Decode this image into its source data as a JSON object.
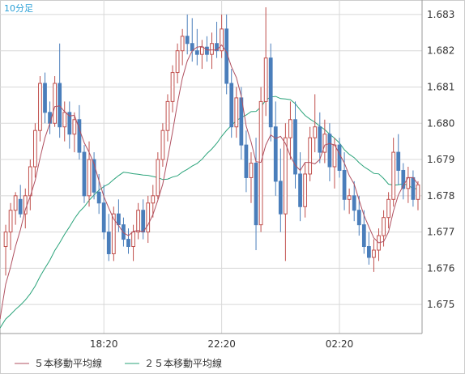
{
  "timeframe_label": "10分足",
  "colors": {
    "bull": "#c0504d",
    "bear": "#4a7ebb",
    "ma5": "#b05060",
    "ma25": "#2aa37a",
    "grid": "#d8d8d8",
    "axis": "#999999"
  },
  "chart_data": {
    "type": "candlestick",
    "title": "",
    "xlabel": "",
    "ylabel": "",
    "ylim": [
      1.6742,
      1.6834
    ],
    "y_ticks": [
      "1.675",
      "1.676",
      "1.677",
      "1.678",
      "1.679",
      "1.680",
      "1.681",
      "1.682",
      "1.683"
    ],
    "x_ticks": [
      {
        "index": 20,
        "label": "18:20"
      },
      {
        "index": 44,
        "label": "22:20"
      },
      {
        "index": 68,
        "label": "02:20"
      }
    ],
    "legend": [
      {
        "label": "５本移動平均線",
        "color": "#b05060"
      },
      {
        "label": "２５本移動平均線",
        "color": "#2aa37a"
      }
    ],
    "ohlc": [
      [
        1.6766,
        1.6772,
        1.6758,
        1.677
      ],
      [
        1.677,
        1.6778,
        1.6765,
        1.6776
      ],
      [
        1.6776,
        1.6781,
        1.6772,
        1.678
      ],
      [
        1.6779,
        1.6783,
        1.6774,
        1.6775
      ],
      [
        1.6775,
        1.6782,
        1.6771,
        1.678
      ],
      [
        1.678,
        1.679,
        1.6776,
        1.6788
      ],
      [
        1.6788,
        1.68,
        1.6785,
        1.6798
      ],
      [
        1.6798,
        1.6813,
        1.6795,
        1.6811
      ],
      [
        1.6811,
        1.6814,
        1.68,
        1.6803
      ],
      [
        1.6803,
        1.6806,
        1.6797,
        1.68
      ],
      [
        1.68,
        1.6813,
        1.6799,
        1.6811
      ],
      [
        1.6811,
        1.6822,
        1.6796,
        1.6799
      ],
      [
        1.6799,
        1.6806,
        1.6795,
        1.6803
      ],
      [
        1.6803,
        1.6806,
        1.6793,
        1.6797
      ],
      [
        1.6797,
        1.6803,
        1.6792,
        1.6801
      ],
      [
        1.6801,
        1.6805,
        1.679,
        1.6792
      ],
      [
        1.6792,
        1.6794,
        1.6778,
        1.678
      ],
      [
        1.678,
        1.6795,
        1.6777,
        1.679
      ],
      [
        1.679,
        1.6792,
        1.6779,
        1.6781
      ],
      [
        1.6781,
        1.6786,
        1.6775,
        1.6778
      ],
      [
        1.6778,
        1.6783,
        1.6768,
        1.677
      ],
      [
        1.677,
        1.6775,
        1.6762,
        1.6764
      ],
      [
        1.6764,
        1.6777,
        1.6762,
        1.6775
      ],
      [
        1.6775,
        1.6779,
        1.677,
        1.6772
      ],
      [
        1.6772,
        1.6774,
        1.6766,
        1.6768
      ],
      [
        1.6768,
        1.6771,
        1.6764,
        1.6766
      ],
      [
        1.6766,
        1.6772,
        1.6762,
        1.677
      ],
      [
        1.677,
        1.6778,
        1.6768,
        1.6776
      ],
      [
        1.6776,
        1.6779,
        1.6768,
        1.677
      ],
      [
        1.677,
        1.678,
        1.6767,
        1.6778
      ],
      [
        1.6778,
        1.6783,
        1.6774,
        1.678
      ],
      [
        1.678,
        1.6792,
        1.6779,
        1.679
      ],
      [
        1.679,
        1.68,
        1.6788,
        1.6798
      ],
      [
        1.6798,
        1.6808,
        1.6795,
        1.6806
      ],
      [
        1.6806,
        1.6816,
        1.6803,
        1.6814
      ],
      [
        1.6814,
        1.6822,
        1.6811,
        1.682
      ],
      [
        1.682,
        1.6826,
        1.6816,
        1.6824
      ],
      [
        1.6824,
        1.683,
        1.6819,
        1.6822
      ],
      [
        1.6822,
        1.6829,
        1.6817,
        1.682
      ],
      [
        1.682,
        1.6826,
        1.6816,
        1.6819
      ],
      [
        1.6819,
        1.6823,
        1.6815,
        1.6821
      ],
      [
        1.6821,
        1.6824,
        1.6817,
        1.6819
      ],
      [
        1.6819,
        1.6825,
        1.6815,
        1.6822
      ],
      [
        1.6822,
        1.6828,
        1.6818,
        1.682
      ],
      [
        1.682,
        1.683,
        1.6818,
        1.6826
      ],
      [
        1.6826,
        1.683,
        1.6808,
        1.6811
      ],
      [
        1.6811,
        1.6815,
        1.6796,
        1.6799
      ],
      [
        1.6799,
        1.681,
        1.6796,
        1.6807
      ],
      [
        1.6807,
        1.681,
        1.679,
        1.6794
      ],
      [
        1.6794,
        1.6798,
        1.6781,
        1.6785
      ],
      [
        1.6785,
        1.6792,
        1.6778,
        1.6789
      ],
      [
        1.6789,
        1.6796,
        1.6765,
        1.6772
      ],
      [
        1.6772,
        1.681,
        1.677,
        1.6806
      ],
      [
        1.6806,
        1.6832,
        1.6802,
        1.6818
      ],
      [
        1.6818,
        1.6822,
        1.6795,
        1.6799
      ],
      [
        1.6799,
        1.6806,
        1.678,
        1.6784
      ],
      [
        1.6784,
        1.6793,
        1.677,
        1.6775
      ],
      [
        1.6775,
        1.68,
        1.6762,
        1.6796
      ],
      [
        1.6796,
        1.6806,
        1.679,
        1.6801
      ],
      [
        1.6801,
        1.6806,
        1.6782,
        1.6786
      ],
      [
        1.6786,
        1.6792,
        1.6773,
        1.6777
      ],
      [
        1.6777,
        1.6789,
        1.6774,
        1.6786
      ],
      [
        1.6786,
        1.6799,
        1.6784,
        1.6796
      ],
      [
        1.6796,
        1.6808,
        1.6792,
        1.6799
      ],
      [
        1.6799,
        1.6803,
        1.6789,
        1.6792
      ],
      [
        1.6792,
        1.6801,
        1.6789,
        1.6797
      ],
      [
        1.6797,
        1.68,
        1.6784,
        1.6788
      ],
      [
        1.6788,
        1.6796,
        1.6782,
        1.6794
      ],
      [
        1.6794,
        1.6796,
        1.6785,
        1.6787
      ],
      [
        1.6787,
        1.6792,
        1.6776,
        1.6779
      ],
      [
        1.6779,
        1.6782,
        1.6775,
        1.678
      ],
      [
        1.678,
        1.6784,
        1.6773,
        1.6776
      ],
      [
        1.6776,
        1.678,
        1.6769,
        1.6772
      ],
      [
        1.6772,
        1.6776,
        1.6764,
        1.6766
      ],
      [
        1.6766,
        1.677,
        1.6761,
        1.6763
      ],
      [
        1.6763,
        1.6768,
        1.6759,
        1.6765
      ],
      [
        1.6765,
        1.6771,
        1.6762,
        1.6769
      ],
      [
        1.6769,
        1.6776,
        1.6766,
        1.6774
      ],
      [
        1.6774,
        1.6781,
        1.6771,
        1.6779
      ],
      [
        1.6779,
        1.6796,
        1.6777,
        1.6792
      ],
      [
        1.6792,
        1.6797,
        1.6783,
        1.6787
      ],
      [
        1.6787,
        1.6789,
        1.6779,
        1.6782
      ],
      [
        1.6782,
        1.6788,
        1.6778,
        1.6785
      ],
      [
        1.6785,
        1.6787,
        1.6777,
        1.6779
      ],
      [
        1.6779,
        1.6784,
        1.6776,
        1.6783
      ]
    ],
    "ma5_start": 1.6752,
    "ma25_start": 1.6745
  }
}
